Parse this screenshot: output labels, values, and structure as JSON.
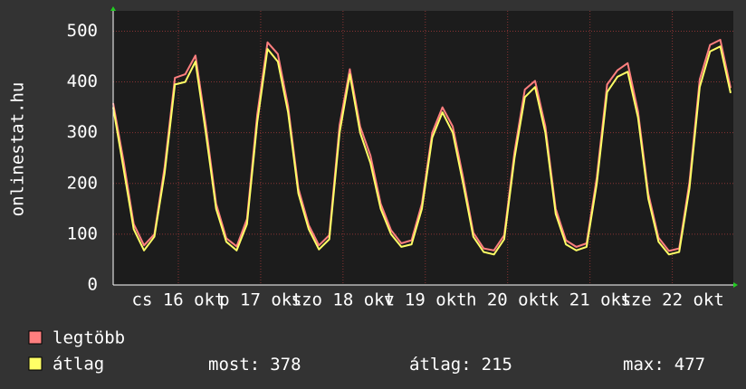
{
  "chart_data": {
    "type": "line",
    "y_label": "onlinestat.hu",
    "x": [
      0,
      3,
      6,
      9,
      12,
      15,
      18,
      21,
      24,
      27,
      30,
      33,
      36,
      39,
      42,
      45,
      48,
      51,
      54,
      57,
      60,
      63,
      66,
      69,
      72,
      75,
      78,
      81,
      84,
      87,
      90,
      93,
      96,
      99,
      102,
      105,
      108,
      111,
      114,
      117,
      120,
      123,
      126,
      129,
      132,
      135,
      138,
      141,
      144,
      147,
      150,
      153,
      156,
      159,
      162,
      165,
      168,
      171,
      174,
      177,
      180
    ],
    "series": [
      {
        "name": "legtöbb",
        "color": "#ff7f7f",
        "values": [
          358,
          245,
          120,
          78,
          100,
          232,
          408,
          415,
          452,
          315,
          160,
          92,
          76,
          130,
          335,
          478,
          455,
          352,
          190,
          118,
          78,
          98,
          315,
          425,
          312,
          255,
          160,
          108,
          82,
          88,
          160,
          300,
          350,
          312,
          212,
          103,
          72,
          68,
          98,
          262,
          385,
          402,
          312,
          150,
          88,
          75,
          82,
          212,
          395,
          423,
          437,
          342,
          180,
          93,
          67,
          72,
          202,
          405,
          473,
          483,
          388
        ]
      },
      {
        "name": "átlag",
        "color": "#ffff66",
        "values": [
          350,
          230,
          110,
          68,
          95,
          220,
          395,
          400,
          440,
          300,
          150,
          85,
          68,
          120,
          320,
          465,
          440,
          340,
          180,
          110,
          70,
          90,
          300,
          415,
          300,
          240,
          150,
          100,
          75,
          80,
          150,
          290,
          340,
          300,
          200,
          95,
          65,
          60,
          90,
          250,
          370,
          390,
          300,
          140,
          80,
          68,
          75,
          200,
          380,
          410,
          420,
          330,
          170,
          85,
          60,
          65,
          190,
          390,
          460,
          470,
          378
        ]
      }
    ],
    "xlim": [
      0,
      180
    ],
    "xticks": [
      {
        "value": 19,
        "label": "cs 16 okt"
      },
      {
        "value": 43,
        "label": "p 17 okt"
      },
      {
        "value": 67,
        "label": "szo 18 okt"
      },
      {
        "value": 91,
        "label": "v 19 okt"
      },
      {
        "value": 115,
        "label": "h 20 okt"
      },
      {
        "value": 139,
        "label": "k 21 okt"
      },
      {
        "value": 163,
        "label": "sze 22 okt"
      }
    ],
    "ylim": [
      0,
      540
    ],
    "yticks": [
      0,
      100,
      200,
      300,
      400,
      500
    ],
    "grid": true,
    "stats": [
      {
        "label": "most:",
        "value": 378
      },
      {
        "label": "átlag:",
        "value": 215
      },
      {
        "label": "max:",
        "value": 477
      }
    ]
  }
}
